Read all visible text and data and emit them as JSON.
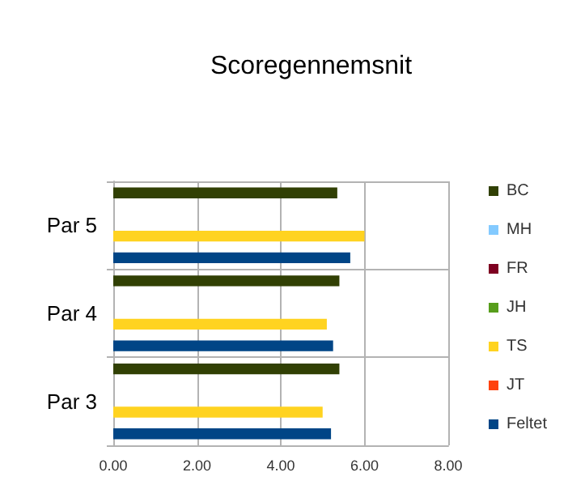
{
  "chart_data": {
    "type": "bar",
    "orientation": "horizontal",
    "title": "Scoregennemsnit",
    "categories": [
      "Par 5",
      "Par 4",
      "Par 3"
    ],
    "series": [
      {
        "name": "BC",
        "color": "#314004",
        "values": [
          5.35,
          5.4,
          5.4
        ]
      },
      {
        "name": "MH",
        "color": "#83caff",
        "values": [
          null,
          null,
          null
        ]
      },
      {
        "name": "FR",
        "color": "#7e0021",
        "values": [
          null,
          null,
          null
        ]
      },
      {
        "name": "JH",
        "color": "#579d1c",
        "values": [
          null,
          null,
          null
        ]
      },
      {
        "name": "TS",
        "color": "#ffd320",
        "values": [
          6.0,
          5.1,
          5.0
        ]
      },
      {
        "name": "JT",
        "color": "#ff420e",
        "values": [
          null,
          null,
          null
        ]
      },
      {
        "name": "Feltet",
        "color": "#004586",
        "values": [
          5.66,
          5.25,
          5.2
        ]
      }
    ],
    "xlim": [
      0,
      8
    ],
    "xticks": [
      {
        "value": 0,
        "label": "0.00"
      },
      {
        "value": 2,
        "label": "2.00"
      },
      {
        "value": 4,
        "label": "4.00"
      },
      {
        "value": 6,
        "label": "6.00"
      },
      {
        "value": 8,
        "label": "8.00"
      }
    ],
    "grid": true,
    "legend": "right"
  }
}
